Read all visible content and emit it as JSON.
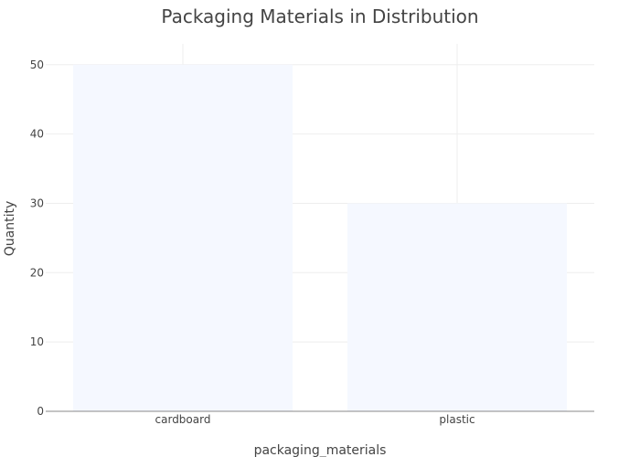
{
  "chart_data": {
    "type": "bar",
    "title": "Packaging Materials in Distribution",
    "xlabel": "packaging_materials",
    "ylabel": "Quantity",
    "categories": [
      "cardboard",
      "plastic"
    ],
    "values": [
      50,
      30
    ],
    "ylim": [
      0,
      53
    ],
    "yticks": [
      0,
      10,
      20,
      30,
      40,
      50
    ],
    "grid": true,
    "bar_color": "#f5f8ff",
    "background": "#ffffff"
  }
}
